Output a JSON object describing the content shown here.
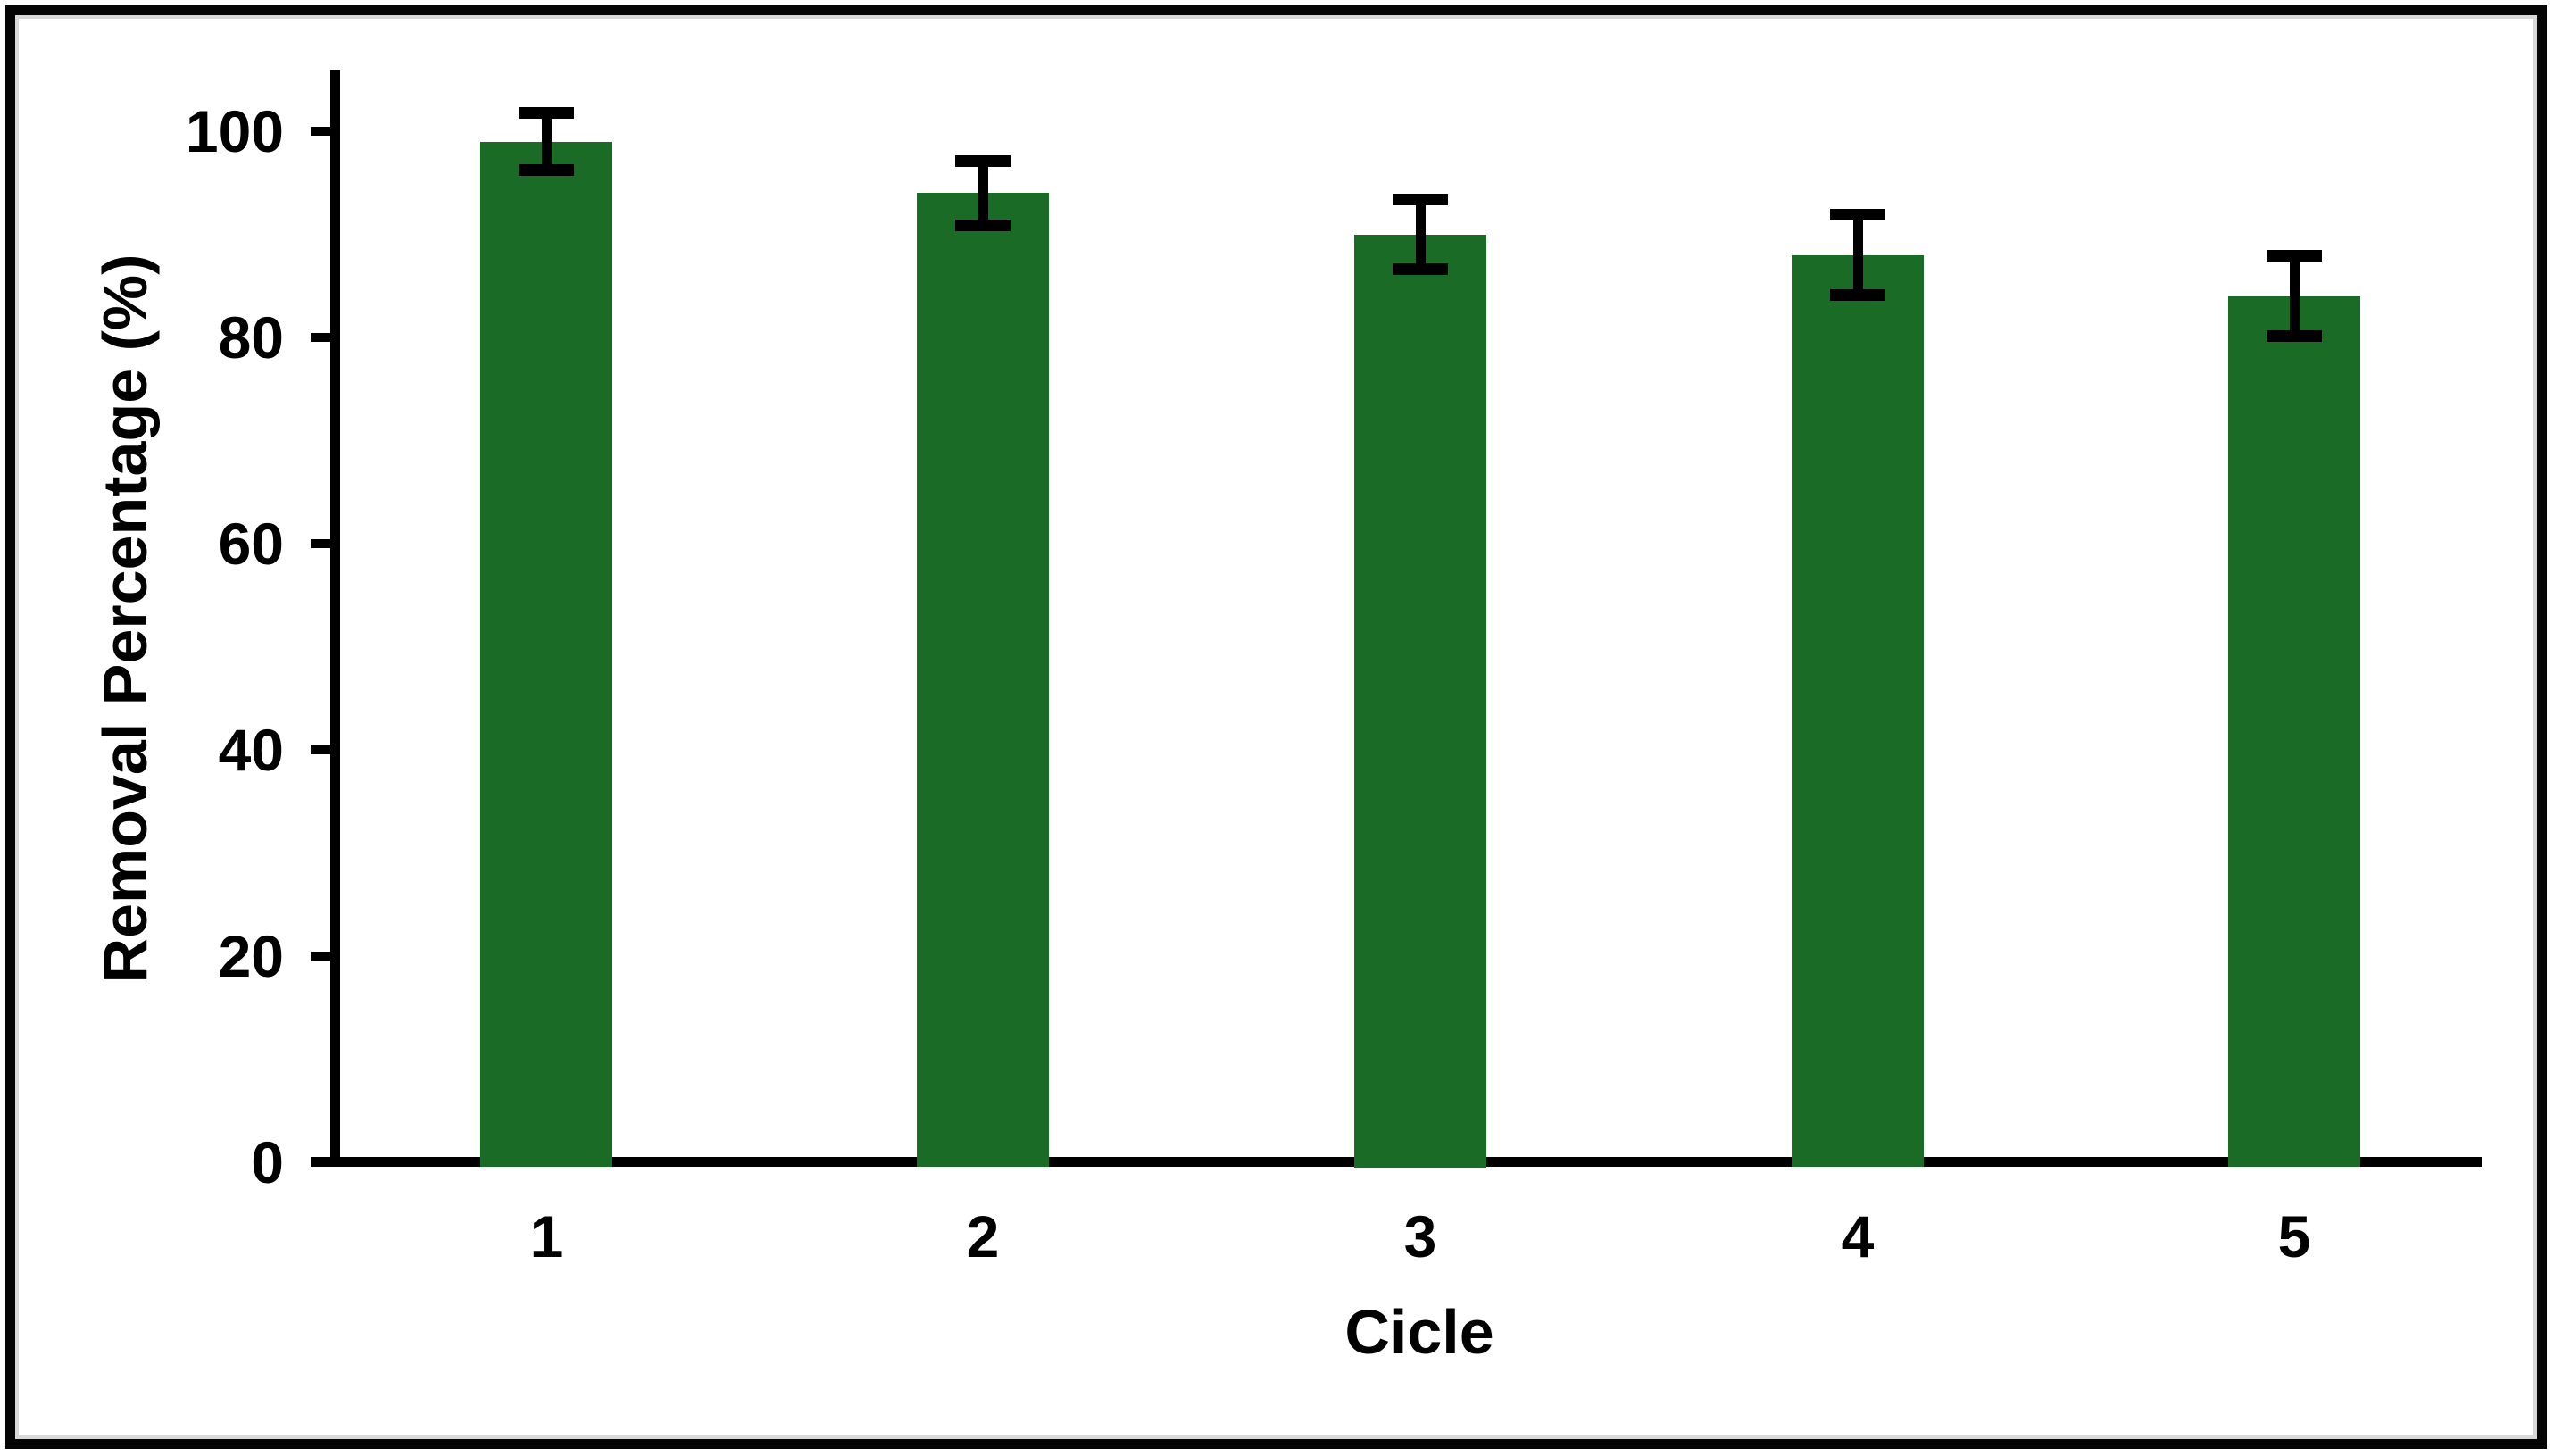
{
  "chart_data": {
    "type": "bar",
    "title": "",
    "xlabel": "Cicle",
    "ylabel": "Removal Percentage (%)",
    "categories": [
      "1",
      "2",
      "3",
      "4",
      "5"
    ],
    "values": [
      99,
      94,
      90,
      88,
      84
    ],
    "errors": [
      2.8,
      3.1,
      3.4,
      3.9,
      3.9
    ],
    "yticks": [
      0,
      20,
      40,
      60,
      80,
      100
    ],
    "ylim": [
      0,
      106
    ],
    "grid": false,
    "legend": null,
    "bar_color": "#1A6B25",
    "axis_color": "#000000",
    "error_color": "#000000",
    "frame_border_color": "#050505",
    "frame_inner_edge_color": "#d9d9d9",
    "background_color": "#ffffff"
  }
}
